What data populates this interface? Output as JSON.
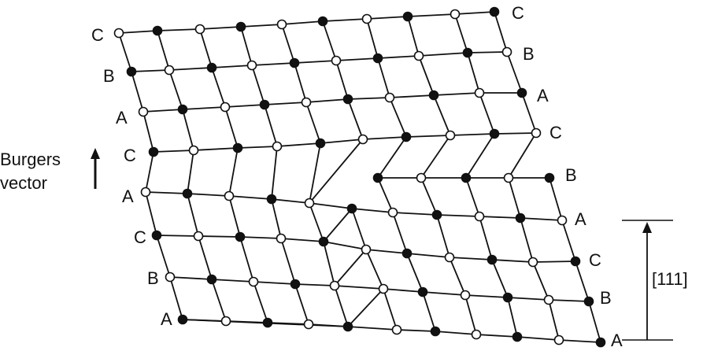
{
  "diagram": {
    "colors": {
      "ink": "#111111",
      "paper": "#ffffff"
    },
    "burgers_label": [
      "Burgers",
      "vector"
    ],
    "direction_label": "[111]",
    "layers": [
      {
        "label_left": "C",
        "label_right": "C",
        "start": "open"
      },
      {
        "label_left": "B",
        "label_right": "B",
        "start": "filled"
      },
      {
        "label_left": "A",
        "label_right": "A",
        "start": "open"
      },
      {
        "label_left": "C",
        "label_right": "C",
        "start": "filled"
      },
      {
        "label_left": "A",
        "label_right": "B",
        "start": "open"
      },
      {
        "label_left": "C",
        "label_right": "A",
        "start": "filled"
      },
      {
        "label_left": "B",
        "label_right": "C",
        "start": "open"
      },
      {
        "label_left": "A",
        "label_right": "B",
        "start": "filled"
      },
      {
        "label_left": "",
        "label_right": "A",
        "start": "open"
      }
    ]
  }
}
